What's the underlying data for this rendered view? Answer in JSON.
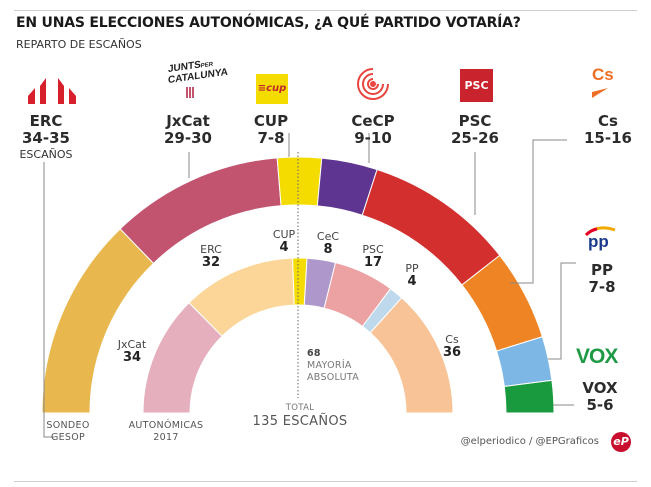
{
  "header": {
    "title": "EN UNAS ELECCIONES AUTONÓMICAS, ¿A QUÉ PARTIDO VOTARÍA?",
    "subtitle": "REPARTO DE ESCAÑOS"
  },
  "parties": [
    {
      "key": "erc",
      "name": "ERC",
      "range": "34-35",
      "extra": "ESCAÑOS",
      "logo": "erc-logo"
    },
    {
      "key": "jxcat",
      "name": "JxCat",
      "range": "29-30",
      "logo": "junts-per-catalunya-logo",
      "logo_text": "JUNTS PER CATALUNYA"
    },
    {
      "key": "cup",
      "name": "CUP",
      "range": "7-8",
      "logo": "cup-logo",
      "logo_text": "cup"
    },
    {
      "key": "cecp",
      "name": "CeCP",
      "range": "9-10",
      "logo": "catalunya-en-comu-logo"
    },
    {
      "key": "psc",
      "name": "PSC",
      "range": "25-26",
      "logo": "psc-logo",
      "logo_text": "PSC"
    },
    {
      "key": "cs",
      "name": "Cs",
      "range": "15-16",
      "logo": "cs-logo",
      "logo_text": "Cs"
    },
    {
      "key": "pp",
      "name": "PP",
      "range": "7-8",
      "logo": "pp-logo",
      "logo_text": "PP"
    },
    {
      "key": "vox",
      "name": "VOX",
      "range": "5-6",
      "logo": "vox-logo",
      "logo_text": "VOX"
    }
  ],
  "inner_labels": [
    {
      "name": "JxCat",
      "value": "34"
    },
    {
      "name": "ERC",
      "value": "32"
    },
    {
      "name": "CUP",
      "value": "4"
    },
    {
      "name": "CeC",
      "value": "8"
    },
    {
      "name": "PSC",
      "value": "17"
    },
    {
      "name": "PP",
      "value": "4"
    },
    {
      "name": "Cs",
      "value": "36"
    }
  ],
  "annotations": {
    "majority_value": "68",
    "majority_line1": "MAYORÍA",
    "majority_line2": "ABSOLUTA",
    "total_label": "TOTAL",
    "total_value": "135 ESCAÑOS",
    "outer_ring_label_1": "SONDEO",
    "outer_ring_label_2": "GESOP",
    "inner_ring_label_1": "AUTONÓMICAS",
    "inner_ring_label_2": "2017"
  },
  "footer": {
    "credit": "@elperiodico / @EPGraficos",
    "logo_text": "eP"
  },
  "chart_data": {
    "type": "parliament-donut",
    "title": "EN UNAS ELECCIONES AUTONÓMICAS, ¿A QUÉ PARTIDO VOTARÍA?",
    "subtitle": "REPARTO DE ESCAÑOS",
    "total_seats": 135,
    "majority": 68,
    "series": [
      {
        "name": "SONDEO GESOP",
        "ring": "outer",
        "categories": [
          "ERC",
          "JxCat",
          "CUP",
          "CeCP",
          "PSC",
          "Cs",
          "PP",
          "VOX"
        ],
        "ranges": [
          "34-35",
          "29-30",
          "7-8",
          "9-10",
          "25-26",
          "15-16",
          "7-8",
          "5-6"
        ],
        "values": [
          34.5,
          29.5,
          7.5,
          9.5,
          25.5,
          15.5,
          7.5,
          5.5
        ],
        "colors": [
          "#e8b84f",
          "#c25470",
          "#f5dc00",
          "#5e3590",
          "#d42f2f",
          "#ef8424",
          "#7db7e5",
          "#1a9a3e"
        ]
      },
      {
        "name": "AUTONÓMICAS 2017",
        "ring": "inner",
        "categories": [
          "JxCat",
          "ERC",
          "CUP",
          "CeC",
          "PSC",
          "PP",
          "Cs"
        ],
        "values": [
          34,
          32,
          4,
          8,
          17,
          4,
          36
        ],
        "colors": [
          "#e5afbd",
          "#fcd698",
          "#f5dc00",
          "#ae98cb",
          "#eca1a3",
          "#bed9eb",
          "#f8c497"
        ]
      }
    ]
  }
}
